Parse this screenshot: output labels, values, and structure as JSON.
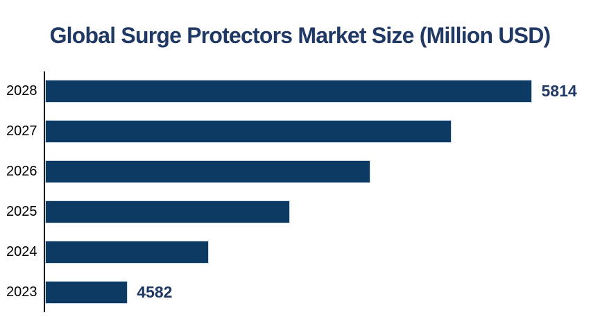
{
  "title": "Global Surge Protectors Market Size (Million USD)",
  "colors": {
    "background": "#ffffff",
    "bar": "#0c3a63",
    "bar_border": "#ccd9e6",
    "title": "#1f3864",
    "value_label": "#1f3864",
    "year_label": "#000000",
    "axis": "#1a1a1a"
  },
  "chart_data": {
    "type": "bar",
    "orientation": "horizontal",
    "title": "Global Surge Protectors Market Size (Million USD)",
    "categories": [
      "2028",
      "2027",
      "2026",
      "2025",
      "2024",
      "2023"
    ],
    "values": [
      5814,
      5568,
      5321,
      5075,
      4828,
      4582
    ],
    "value_labels_shown": [
      "5814",
      "",
      "",
      "",
      "",
      "4582"
    ],
    "xlim": [
      4330,
      6020
    ],
    "xlabel": "",
    "ylabel": "",
    "grid": false,
    "legend": false
  }
}
